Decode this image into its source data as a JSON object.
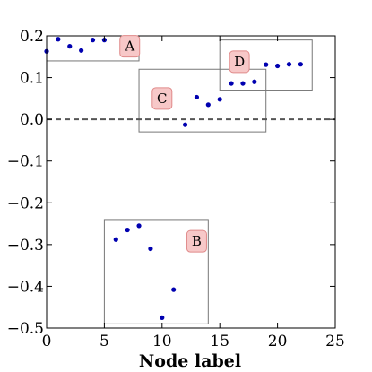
{
  "chart_data": {
    "type": "scatter",
    "title": "",
    "xlabel": "Node label",
    "ylabel": "",
    "xlim": [
      0,
      25
    ],
    "ylim": [
      -0.5,
      0.2
    ],
    "xticks": [
      0,
      5,
      10,
      15,
      20,
      25
    ],
    "xtick_labels": [
      "0",
      "5",
      "10",
      "15",
      "20",
      "25"
    ],
    "yticks": [
      0.2,
      0.1,
      0.0,
      -0.1,
      -0.2,
      -0.3,
      -0.4,
      -0.5
    ],
    "ytick_labels": [
      "0.2",
      "0.1",
      "0.0",
      "−0.1",
      "−0.2",
      "−0.3",
      "−0.4",
      "−0.5"
    ],
    "grid": false,
    "reference_line": {
      "y": 0.0,
      "style": "dashed",
      "color": "#555555"
    },
    "marker_color": "#0000b0",
    "points": [
      {
        "x": 0,
        "y": 0.163
      },
      {
        "x": 1,
        "y": 0.192
      },
      {
        "x": 2,
        "y": 0.175
      },
      {
        "x": 3,
        "y": 0.165
      },
      {
        "x": 4,
        "y": 0.19
      },
      {
        "x": 5,
        "y": 0.19
      },
      {
        "x": 6,
        "y": -0.288
      },
      {
        "x": 7,
        "y": -0.265
      },
      {
        "x": 8,
        "y": -0.255
      },
      {
        "x": 9,
        "y": -0.31
      },
      {
        "x": 10,
        "y": -0.475
      },
      {
        "x": 11,
        "y": -0.408
      },
      {
        "x": 12,
        "y": -0.013
      },
      {
        "x": 13,
        "y": 0.053
      },
      {
        "x": 14,
        "y": 0.035
      },
      {
        "x": 15,
        "y": 0.048
      },
      {
        "x": 16,
        "y": 0.086
      },
      {
        "x": 17,
        "y": 0.086
      },
      {
        "x": 18,
        "y": 0.09
      },
      {
        "x": 19,
        "y": 0.131
      },
      {
        "x": 20,
        "y": 0.128
      },
      {
        "x": 21,
        "y": 0.132
      },
      {
        "x": 22,
        "y": 0.132
      }
    ],
    "groups": [
      {
        "label": "A",
        "x_range": [
          0,
          8
        ],
        "y_range": [
          0.14,
          0.2
        ],
        "label_at": [
          7.2,
          0.175
        ]
      },
      {
        "label": "B",
        "x_range": [
          5,
          14
        ],
        "y_range": [
          -0.49,
          -0.24
        ],
        "label_at": [
          13.0,
          -0.292
        ]
      },
      {
        "label": "C",
        "x_range": [
          8,
          19
        ],
        "y_range": [
          -0.03,
          0.12
        ],
        "label_at": [
          10.0,
          0.05
        ]
      },
      {
        "label": "D",
        "x_range": [
          15,
          23
        ],
        "y_range": [
          0.07,
          0.19
        ],
        "label_at": [
          16.7,
          0.138
        ]
      }
    ],
    "box_style": {
      "fill": "#f7c8c8",
      "stroke": "#e08a8a"
    }
  }
}
